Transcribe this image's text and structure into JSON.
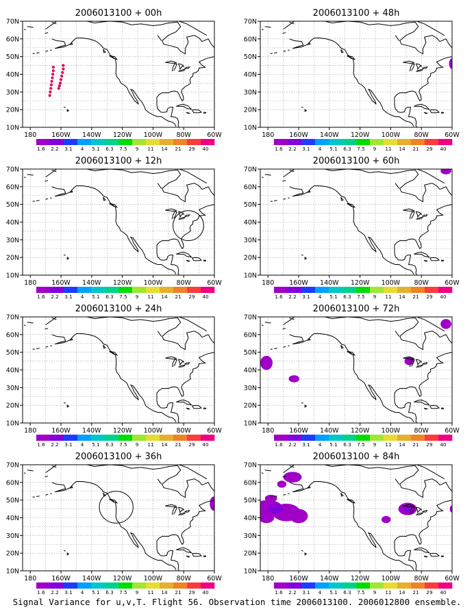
{
  "caption": "Signal Variance for u,v,T. Flight 56. Observation time 2006013100. 2006012800 ensemble.",
  "colorbar": {
    "labels": [
      "1.6",
      "2.2",
      "3.1",
      "4",
      "5.1",
      "6.3",
      "7.5",
      "9",
      "11",
      "14",
      "21",
      "29",
      "40"
    ],
    "colors": [
      "#a000c8",
      "#8200dc",
      "#1e3cff",
      "#00a0ff",
      "#00c8c8",
      "#00d28c",
      "#00dc00",
      "#a0e632",
      "#e6dc32",
      "#e6af2d",
      "#f08228",
      "#fa3c3c",
      "#f00082"
    ]
  },
  "map": {
    "xticks": [
      "180",
      "160W",
      "140W",
      "120W",
      "100W",
      "80W",
      "60W"
    ],
    "yticks": [
      "10N",
      "20N",
      "30N",
      "40N",
      "50N",
      "60N",
      "70N"
    ],
    "lon_range": [
      -185,
      -60
    ],
    "lat_range": [
      10,
      70
    ],
    "grid": true
  },
  "chart_data": [
    {
      "type": "heatmap",
      "title": "2006013100 + 00h",
      "features": [
        {
          "kind": "dots",
          "color": "#e0005a",
          "points": [
            [
              -165,
              44
            ],
            [
              -165,
              42
            ],
            [
              -165.3,
              40
            ],
            [
              -165.6,
              38
            ],
            [
              -166,
              36
            ],
            [
              -166.3,
              34
            ],
            [
              -166.6,
              32
            ],
            [
              -167,
              30
            ],
            [
              -167.3,
              28
            ],
            [
              -158.5,
              45
            ],
            [
              -158.5,
              43
            ],
            [
              -159,
              41
            ],
            [
              -159.5,
              39
            ],
            [
              -160,
              37
            ],
            [
              -160.5,
              35
            ],
            [
              -161,
              33.5
            ],
            [
              -161.5,
              32
            ]
          ]
        }
      ]
    },
    {
      "type": "heatmap",
      "title": "2006013100 + 48h",
      "features": [
        {
          "kind": "blob",
          "color": "#a000c8",
          "lon": -60,
          "lat": 46,
          "rx": 2,
          "ry": 3
        }
      ]
    },
    {
      "type": "heatmap",
      "title": "2006013100 + 12h",
      "features": [
        {
          "kind": "circle",
          "lon": -77,
          "lat": 38,
          "rx": 10,
          "ry": 8.5
        }
      ]
    },
    {
      "type": "heatmap",
      "title": "2006013100 + 60h",
      "features": [
        {
          "kind": "blob",
          "color": "#a000c8",
          "lon": -64,
          "lat": 69,
          "rx": 3.5,
          "ry": 2
        }
      ]
    },
    {
      "type": "heatmap",
      "title": "2006013100 + 24h",
      "features": []
    },
    {
      "type": "heatmap",
      "title": "2006013100 + 72h",
      "features": [
        {
          "kind": "blob",
          "color": "#a000c8",
          "lon": -64,
          "lat": 66,
          "rx": 3.5,
          "ry": 2.8
        },
        {
          "kind": "blob",
          "color": "#a000c8",
          "lon": -181,
          "lat": 44,
          "rx": 4,
          "ry": 4
        },
        {
          "kind": "blob",
          "color": "#a000c8",
          "lon": -88,
          "lat": 45,
          "rx": 3,
          "ry": 2.3
        },
        {
          "kind": "blob",
          "color": "#a000c8",
          "lon": -163,
          "lat": 35,
          "rx": 3.5,
          "ry": 2
        }
      ]
    },
    {
      "type": "heatmap",
      "title": "2006013100 + 36h",
      "features": [
        {
          "kind": "circle",
          "lon": -124,
          "lat": 46,
          "rx": 11,
          "ry": 9
        },
        {
          "kind": "blob",
          "color": "#a000c8",
          "lon": -60.5,
          "lat": 48,
          "rx": 2.5,
          "ry": 4
        }
      ]
    },
    {
      "type": "heatmap",
      "title": "2006013100 + 84h",
      "features": [
        {
          "kind": "blob",
          "color": "#a000c8",
          "lon": -180,
          "lat": 45,
          "rx": 10,
          "ry": 5
        },
        {
          "kind": "blob",
          "color": "#a000c8",
          "lon": -168,
          "lat": 43,
          "rx": 9,
          "ry": 5
        },
        {
          "kind": "blob",
          "color": "#a000c8",
          "lon": -160,
          "lat": 41,
          "rx": 6,
          "ry": 4
        },
        {
          "kind": "blob",
          "color": "#a000c8",
          "lon": -181,
          "lat": 40,
          "rx": 5,
          "ry": 3
        },
        {
          "kind": "blob",
          "color": "#a000c8",
          "lon": -178,
          "lat": 51,
          "rx": 4,
          "ry": 2
        },
        {
          "kind": "blob",
          "color": "#a000c8",
          "lon": -164,
          "lat": 63,
          "rx": 6,
          "ry": 3
        },
        {
          "kind": "blob",
          "color": "#a000c8",
          "lon": -171,
          "lat": 59,
          "rx": 3,
          "ry": 2
        },
        {
          "kind": "blob",
          "color": "#8200dc",
          "lon": -175,
          "lat": 45,
          "rx": 5,
          "ry": 2.5
        },
        {
          "kind": "blob",
          "color": "#a000c8",
          "lon": -89,
          "lat": 45,
          "rx": 6,
          "ry": 3.5
        },
        {
          "kind": "blob",
          "color": "#8200dc",
          "lon": -89,
          "lat": 45,
          "rx": 2.5,
          "ry": 1.5
        },
        {
          "kind": "blob",
          "color": "#a000c8",
          "lon": -103,
          "lat": 39,
          "rx": 3,
          "ry": 2
        },
        {
          "kind": "blob",
          "color": "#a000c8",
          "lon": -60,
          "lat": 45,
          "rx": 1.5,
          "ry": 2
        }
      ]
    }
  ]
}
